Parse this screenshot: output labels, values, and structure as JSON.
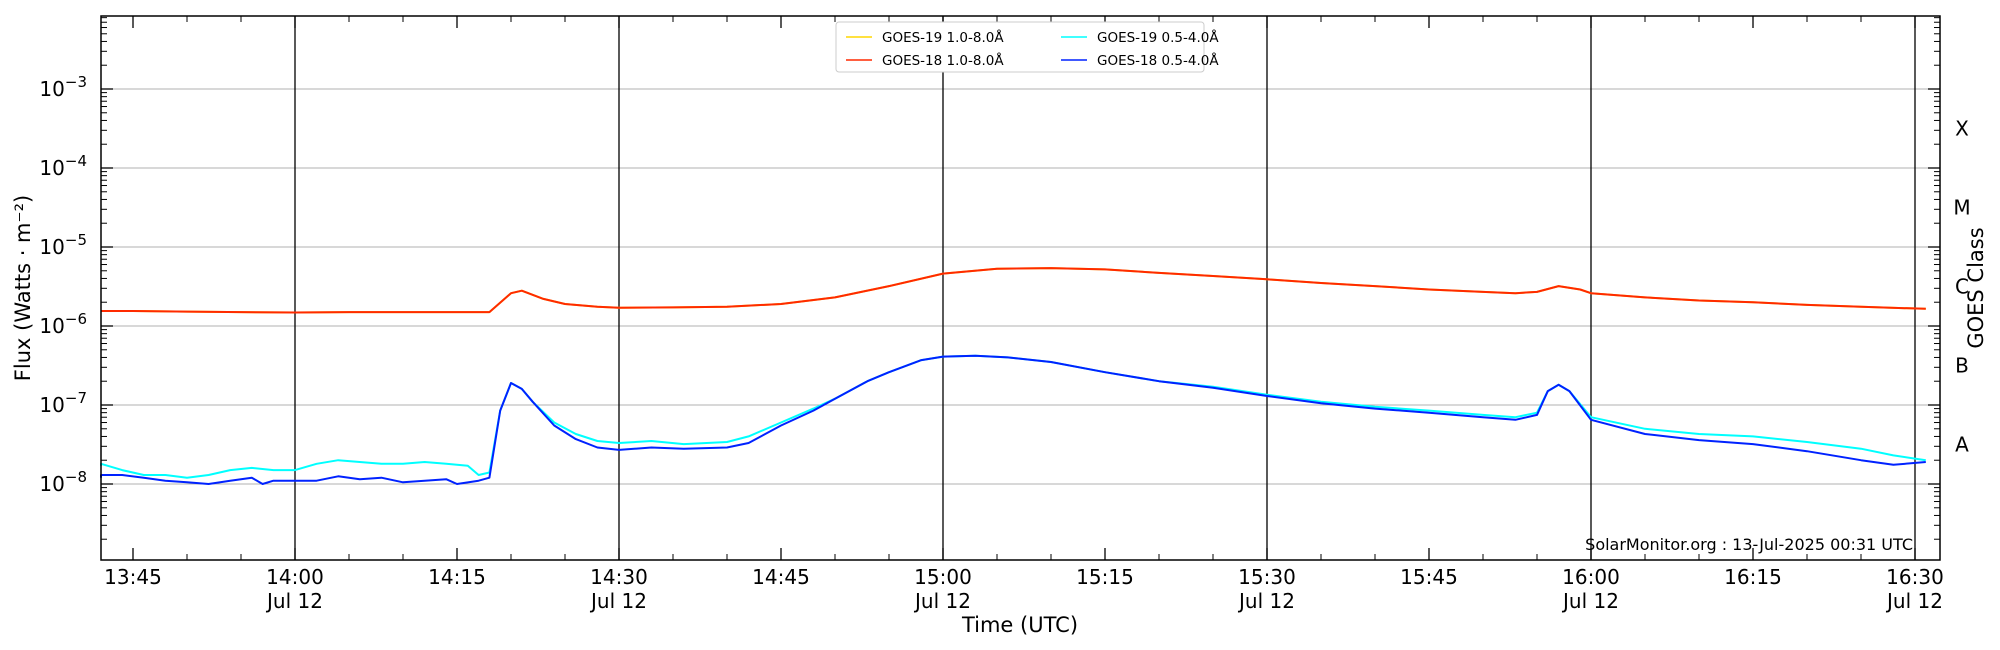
{
  "chart_data": {
    "type": "line",
    "title": "",
    "xlabel": "Time (UTC)",
    "ylabel": "Flux (Watts · m⁻²)",
    "y2label": "GOES Class",
    "yscale": "log",
    "ylim": [
      1e-09,
      0.01
    ],
    "xlim": [
      "13:40",
      "16:31"
    ],
    "grid": "horizontal at each decade, vertical black lines every 30 min",
    "legend_position": "top-center",
    "credit": "SolarMonitor.org : 13-Jul-2025 00:31 UTC",
    "y_ticks": [
      {
        "exp": -8,
        "label": "10",
        "sup": "−8"
      },
      {
        "exp": -7,
        "label": "10",
        "sup": "−7"
      },
      {
        "exp": -6,
        "label": "10",
        "sup": "−6"
      },
      {
        "exp": -5,
        "label": "10",
        "sup": "−5"
      },
      {
        "exp": -4,
        "label": "10",
        "sup": "−4"
      },
      {
        "exp": -3,
        "label": "10",
        "sup": "−3"
      }
    ],
    "x_ticks": [
      {
        "time": "13:45",
        "label": "13:45",
        "date": ""
      },
      {
        "time": "14:00",
        "label": "14:00",
        "date": "Jul 12"
      },
      {
        "time": "14:15",
        "label": "14:15",
        "date": ""
      },
      {
        "time": "14:30",
        "label": "14:30",
        "date": "Jul 12"
      },
      {
        "time": "14:45",
        "label": "14:45",
        "date": ""
      },
      {
        "time": "15:00",
        "label": "15:00",
        "date": "Jul 12"
      },
      {
        "time": "15:15",
        "label": "15:15",
        "date": ""
      },
      {
        "time": "15:30",
        "label": "15:30",
        "date": "Jul 12"
      },
      {
        "time": "15:45",
        "label": "15:45",
        "date": ""
      },
      {
        "time": "16:00",
        "label": "16:00",
        "date": "Jul 12"
      },
      {
        "time": "16:15",
        "label": "16:15",
        "date": ""
      },
      {
        "time": "16:30",
        "label": "16:30",
        "date": "Jul 12"
      }
    ],
    "goes_classes": [
      {
        "label": "A",
        "flux": 1e-08
      },
      {
        "label": "B",
        "flux": 1e-07
      },
      {
        "label": "C",
        "flux": 1e-06
      },
      {
        "label": "M",
        "flux": 1e-05
      },
      {
        "label": "X",
        "flux": 0.0001
      }
    ],
    "legend": [
      {
        "label": "GOES-19 1.0-8.0Å",
        "color": "#ffd700"
      },
      {
        "label": "GOES-19 0.5-4.0Å",
        "color": "#00ffff"
      },
      {
        "label": "GOES-18 1.0-8.0Å",
        "color": "#ff2a00"
      },
      {
        "label": "GOES-18 0.5-4.0Å",
        "color": "#0022ff"
      }
    ],
    "series": [
      {
        "name": "GOES-19 1.0-8.0Å",
        "color": "#ffd700",
        "points": [
          [
            "13:40",
            1.55e-06
          ],
          [
            "13:45",
            1.55e-06
          ],
          [
            "13:50",
            1.52e-06
          ],
          [
            "13:55",
            1.5e-06
          ],
          [
            "14:00",
            1.48e-06
          ],
          [
            "14:05",
            1.5e-06
          ],
          [
            "14:10",
            1.5e-06
          ],
          [
            "14:15",
            1.5e-06
          ],
          [
            "14:18",
            1.5e-06
          ],
          [
            "14:20",
            2.6e-06
          ],
          [
            "14:21",
            2.8e-06
          ],
          [
            "14:23",
            2.2e-06
          ],
          [
            "14:25",
            1.9e-06
          ],
          [
            "14:28",
            1.75e-06
          ],
          [
            "14:30",
            1.7e-06
          ],
          [
            "14:35",
            1.72e-06
          ],
          [
            "14:40",
            1.75e-06
          ],
          [
            "14:45",
            1.9e-06
          ],
          [
            "14:50",
            2.3e-06
          ],
          [
            "14:55",
            3.2e-06
          ],
          [
            "15:00",
            4.6e-06
          ],
          [
            "15:05",
            5.3e-06
          ],
          [
            "15:10",
            5.4e-06
          ],
          [
            "15:15",
            5.2e-06
          ],
          [
            "15:20",
            4.7e-06
          ],
          [
            "15:25",
            4.3e-06
          ],
          [
            "15:30",
            3.9e-06
          ],
          [
            "15:35",
            3.5e-06
          ],
          [
            "15:40",
            3.2e-06
          ],
          [
            "15:45",
            2.9e-06
          ],
          [
            "15:50",
            2.7e-06
          ],
          [
            "15:53",
            2.6e-06
          ],
          [
            "15:55",
            2.7e-06
          ],
          [
            "15:57",
            3.2e-06
          ],
          [
            "15:59",
            2.9e-06
          ],
          [
            "16:00",
            2.6e-06
          ],
          [
            "16:05",
            2.3e-06
          ],
          [
            "16:10",
            2.1e-06
          ],
          [
            "16:15",
            2e-06
          ],
          [
            "16:20",
            1.85e-06
          ],
          [
            "16:25",
            1.75e-06
          ],
          [
            "16:31",
            1.65e-06
          ]
        ]
      },
      {
        "name": "GOES-18 1.0-8.0Å",
        "color": "#ff2a00",
        "points": [
          [
            "13:40",
            1.55e-06
          ],
          [
            "13:45",
            1.55e-06
          ],
          [
            "13:50",
            1.52e-06
          ],
          [
            "13:55",
            1.5e-06
          ],
          [
            "14:00",
            1.48e-06
          ],
          [
            "14:05",
            1.5e-06
          ],
          [
            "14:10",
            1.5e-06
          ],
          [
            "14:15",
            1.5e-06
          ],
          [
            "14:18",
            1.5e-06
          ],
          [
            "14:20",
            2.6e-06
          ],
          [
            "14:21",
            2.8e-06
          ],
          [
            "14:23",
            2.2e-06
          ],
          [
            "14:25",
            1.9e-06
          ],
          [
            "14:28",
            1.75e-06
          ],
          [
            "14:30",
            1.7e-06
          ],
          [
            "14:35",
            1.72e-06
          ],
          [
            "14:40",
            1.75e-06
          ],
          [
            "14:45",
            1.9e-06
          ],
          [
            "14:50",
            2.3e-06
          ],
          [
            "14:55",
            3.2e-06
          ],
          [
            "15:00",
            4.6e-06
          ],
          [
            "15:05",
            5.3e-06
          ],
          [
            "15:10",
            5.4e-06
          ],
          [
            "15:15",
            5.2e-06
          ],
          [
            "15:20",
            4.7e-06
          ],
          [
            "15:25",
            4.3e-06
          ],
          [
            "15:30",
            3.9e-06
          ],
          [
            "15:35",
            3.5e-06
          ],
          [
            "15:40",
            3.2e-06
          ],
          [
            "15:45",
            2.9e-06
          ],
          [
            "15:50",
            2.7e-06
          ],
          [
            "15:53",
            2.6e-06
          ],
          [
            "15:55",
            2.7e-06
          ],
          [
            "15:57",
            3.2e-06
          ],
          [
            "15:59",
            2.9e-06
          ],
          [
            "16:00",
            2.6e-06
          ],
          [
            "16:05",
            2.3e-06
          ],
          [
            "16:10",
            2.1e-06
          ],
          [
            "16:15",
            2e-06
          ],
          [
            "16:20",
            1.85e-06
          ],
          [
            "16:25",
            1.75e-06
          ],
          [
            "16:31",
            1.65e-06
          ]
        ]
      },
      {
        "name": "GOES-19 0.5-4.0Å",
        "color": "#00ffff",
        "points": [
          [
            "13:40",
            1.7e-08
          ],
          [
            "13:42",
            1.8e-08
          ],
          [
            "13:44",
            1.5e-08
          ],
          [
            "13:46",
            1.3e-08
          ],
          [
            "13:48",
            1.3e-08
          ],
          [
            "13:50",
            1.2e-08
          ],
          [
            "13:52",
            1.3e-08
          ],
          [
            "13:54",
            1.5e-08
          ],
          [
            "13:56",
            1.6e-08
          ],
          [
            "13:58",
            1.5e-08
          ],
          [
            "14:00",
            1.5e-08
          ],
          [
            "14:02",
            1.8e-08
          ],
          [
            "14:04",
            2e-08
          ],
          [
            "14:06",
            1.9e-08
          ],
          [
            "14:08",
            1.8e-08
          ],
          [
            "14:10",
            1.8e-08
          ],
          [
            "14:12",
            1.9e-08
          ],
          [
            "14:14",
            1.8e-08
          ],
          [
            "14:16",
            1.7e-08
          ],
          [
            "14:17",
            1.3e-08
          ],
          [
            "14:18",
            1.4e-08
          ],
          [
            "14:19",
            8.5e-08
          ],
          [
            "14:20",
            1.9e-07
          ],
          [
            "14:21",
            1.6e-07
          ],
          [
            "14:22",
            1.1e-07
          ],
          [
            "14:24",
            6e-08
          ],
          [
            "14:26",
            4.3e-08
          ],
          [
            "14:28",
            3.5e-08
          ],
          [
            "14:30",
            3.3e-08
          ],
          [
            "14:33",
            3.5e-08
          ],
          [
            "14:36",
            3.2e-08
          ],
          [
            "14:40",
            3.4e-08
          ],
          [
            "14:42",
            4e-08
          ],
          [
            "14:45",
            6e-08
          ],
          [
            "14:48",
            9e-08
          ],
          [
            "14:50",
            1.2e-07
          ],
          [
            "14:53",
            2e-07
          ],
          [
            "14:55",
            2.6e-07
          ],
          [
            "14:58",
            3.7e-07
          ],
          [
            "15:00",
            4.1e-07
          ],
          [
            "15:03",
            4.2e-07
          ],
          [
            "15:06",
            4e-07
          ],
          [
            "15:10",
            3.5e-07
          ],
          [
            "15:15",
            2.6e-07
          ],
          [
            "15:20",
            2e-07
          ],
          [
            "15:25",
            1.7e-07
          ],
          [
            "15:30",
            1.35e-07
          ],
          [
            "15:35",
            1.1e-07
          ],
          [
            "15:40",
            9.5e-08
          ],
          [
            "15:45",
            8.5e-08
          ],
          [
            "15:50",
            7.5e-08
          ],
          [
            "15:53",
            7e-08
          ],
          [
            "15:55",
            8e-08
          ],
          [
            "15:56",
            1.5e-07
          ],
          [
            "15:57",
            1.8e-07
          ],
          [
            "15:58",
            1.5e-07
          ],
          [
            "16:00",
            7e-08
          ],
          [
            "16:05",
            5e-08
          ],
          [
            "16:10",
            4.3e-08
          ],
          [
            "16:15",
            4e-08
          ],
          [
            "16:20",
            3.4e-08
          ],
          [
            "16:25",
            2.8e-08
          ],
          [
            "16:28",
            2.3e-08
          ],
          [
            "16:31",
            2e-08
          ]
        ]
      },
      {
        "name": "GOES-18 0.5-4.0Å",
        "color": "#0022ff",
        "points": [
          [
            "13:40",
            1.2e-08
          ],
          [
            "13:42",
            1.3e-08
          ],
          [
            "13:44",
            1.3e-08
          ],
          [
            "13:46",
            1.2e-08
          ],
          [
            "13:48",
            1.1e-08
          ],
          [
            "13:50",
            1.05e-08
          ],
          [
            "13:52",
            1e-08
          ],
          [
            "13:54",
            1.1e-08
          ],
          [
            "13:56",
            1.2e-08
          ],
          [
            "13:57",
            1e-08
          ],
          [
            "13:58",
            1.1e-08
          ],
          [
            "14:00",
            1.1e-08
          ],
          [
            "14:02",
            1.1e-08
          ],
          [
            "14:04",
            1.25e-08
          ],
          [
            "14:06",
            1.15e-08
          ],
          [
            "14:08",
            1.2e-08
          ],
          [
            "14:10",
            1.05e-08
          ],
          [
            "14:12",
            1.1e-08
          ],
          [
            "14:14",
            1.15e-08
          ],
          [
            "14:15",
            1e-08
          ],
          [
            "14:17",
            1.1e-08
          ],
          [
            "14:18",
            1.2e-08
          ],
          [
            "14:19",
            8.5e-08
          ],
          [
            "14:20",
            1.9e-07
          ],
          [
            "14:21",
            1.6e-07
          ],
          [
            "14:22",
            1.1e-07
          ],
          [
            "14:24",
            5.5e-08
          ],
          [
            "14:26",
            3.7e-08
          ],
          [
            "14:28",
            2.9e-08
          ],
          [
            "14:30",
            2.7e-08
          ],
          [
            "14:33",
            2.9e-08
          ],
          [
            "14:36",
            2.8e-08
          ],
          [
            "14:40",
            2.9e-08
          ],
          [
            "14:42",
            3.3e-08
          ],
          [
            "14:45",
            5.5e-08
          ],
          [
            "14:48",
            8.5e-08
          ],
          [
            "14:50",
            1.2e-07
          ],
          [
            "14:53",
            2e-07
          ],
          [
            "14:55",
            2.6e-07
          ],
          [
            "14:58",
            3.7e-07
          ],
          [
            "15:00",
            4.1e-07
          ],
          [
            "15:03",
            4.2e-07
          ],
          [
            "15:06",
            4e-07
          ],
          [
            "15:10",
            3.5e-07
          ],
          [
            "15:15",
            2.6e-07
          ],
          [
            "15:20",
            2e-07
          ],
          [
            "15:25",
            1.65e-07
          ],
          [
            "15:30",
            1.3e-07
          ],
          [
            "15:35",
            1.05e-07
          ],
          [
            "15:40",
            9e-08
          ],
          [
            "15:45",
            8e-08
          ],
          [
            "15:50",
            7e-08
          ],
          [
            "15:53",
            6.5e-08
          ],
          [
            "15:55",
            7.5e-08
          ],
          [
            "15:56",
            1.5e-07
          ],
          [
            "15:57",
            1.8e-07
          ],
          [
            "15:58",
            1.5e-07
          ],
          [
            "16:00",
            6.5e-08
          ],
          [
            "16:05",
            4.3e-08
          ],
          [
            "16:10",
            3.6e-08
          ],
          [
            "16:15",
            3.2e-08
          ],
          [
            "16:20",
            2.6e-08
          ],
          [
            "16:25",
            2e-08
          ],
          [
            "16:28",
            1.75e-08
          ],
          [
            "16:31",
            1.9e-08
          ]
        ]
      }
    ]
  }
}
